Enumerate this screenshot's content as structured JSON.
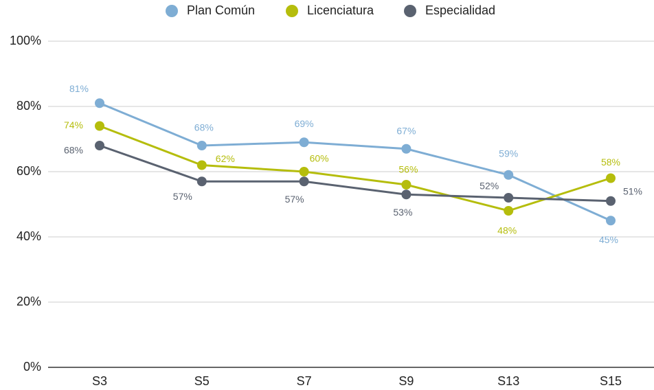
{
  "chart_data": {
    "type": "line",
    "categories": [
      "S3",
      "S5",
      "S7",
      "S9",
      "S13",
      "S15"
    ],
    "series": [
      {
        "name": "Plan Común",
        "color": "#7eadd4",
        "values": [
          81,
          68,
          69,
          67,
          59,
          45
        ],
        "value_labels": [
          "81%",
          "68%",
          "69%",
          "67%",
          "59%",
          "45%"
        ]
      },
      {
        "name": "Licenciatura",
        "color": "#b5bd0c",
        "values": [
          74,
          62,
          60,
          56,
          48,
          58
        ],
        "value_labels": [
          "74%",
          "62%",
          "60%",
          "56%",
          "48%",
          "58%"
        ]
      },
      {
        "name": "Especialidad",
        "color": "#5a6270",
        "values": [
          68,
          57,
          57,
          53,
          52,
          51
        ],
        "value_labels": [
          "68%",
          "57%",
          "57%",
          "53%",
          "52%",
          "51%"
        ]
      }
    ],
    "ylim": [
      0,
      100
    ],
    "yticks": [
      {
        "value": 0,
        "label": "0%"
      },
      {
        "value": 20,
        "label": "20%"
      },
      {
        "value": 40,
        "label": "40%"
      },
      {
        "value": 60,
        "label": "60%"
      },
      {
        "value": 80,
        "label": "80%"
      },
      {
        "value": 100,
        "label": "100%"
      }
    ],
    "grid": true,
    "legend": "top"
  }
}
